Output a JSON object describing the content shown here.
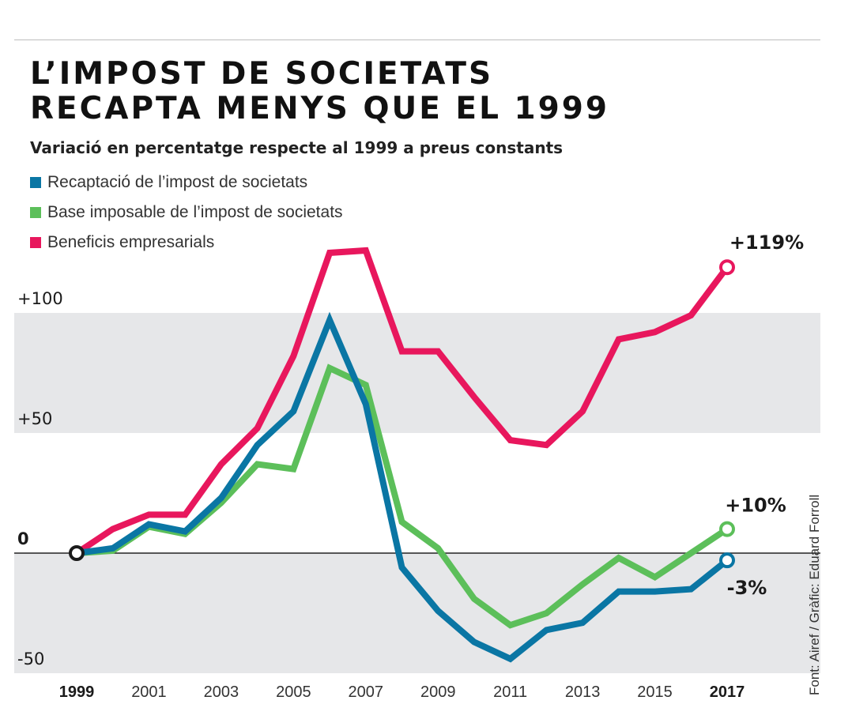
{
  "header": {
    "title_line1": "L’IMPOST DE SOCIETATS",
    "title_line2": "RECAPTA MENYS QUE EL 1999",
    "subtitle": "Variació en percentatge respecte al 1999 a preus constants"
  },
  "credit": "Font: Airef / Gràfic: Eduard Forroll",
  "chart_data": {
    "type": "line",
    "title": "L’IMPOST DE SOCIETATS RECAPTA MENYS QUE EL 1999",
    "subtitle": "Variació en percentatge respecte al 1999 a preus constants",
    "x": [
      1999,
      2000,
      2001,
      2002,
      2003,
      2004,
      2005,
      2006,
      2007,
      2008,
      2009,
      2010,
      2011,
      2012,
      2013,
      2014,
      2015,
      2016,
      2017
    ],
    "x_tick_labels": [
      "1999",
      "2001",
      "2003",
      "2005",
      "2007",
      "2009",
      "2011",
      "2013",
      "2015",
      "2017"
    ],
    "y_tick_labels": [
      "+100",
      "+50",
      "0",
      "-50"
    ],
    "ylim": [
      -50,
      100
    ],
    "series": [
      {
        "name": "Recaptació de l’impost de societats",
        "color": "#0a76a4",
        "values": [
          0,
          2,
          12,
          9,
          23,
          45,
          59,
          97,
          62,
          -6,
          -24,
          -37,
          -44,
          -32,
          -29,
          -16,
          -16,
          -15,
          -3
        ],
        "end_label": "-3%"
      },
      {
        "name": "Base imposable de l’impost de societats",
        "color": "#5cbf5a",
        "values": [
          0,
          1,
          11,
          8,
          21,
          37,
          35,
          77,
          70,
          13,
          2,
          -19,
          -30,
          -25,
          -13,
          -2,
          -10,
          0,
          10
        ],
        "end_label": "+10%"
      },
      {
        "name": "Beneficis empresarials",
        "color": "#e8175d",
        "values": [
          0,
          10,
          16,
          16,
          37,
          52,
          82,
          125,
          126,
          84,
          84,
          65,
          47,
          45,
          59,
          89,
          92,
          99,
          119
        ],
        "end_label": "+119%"
      }
    ]
  }
}
